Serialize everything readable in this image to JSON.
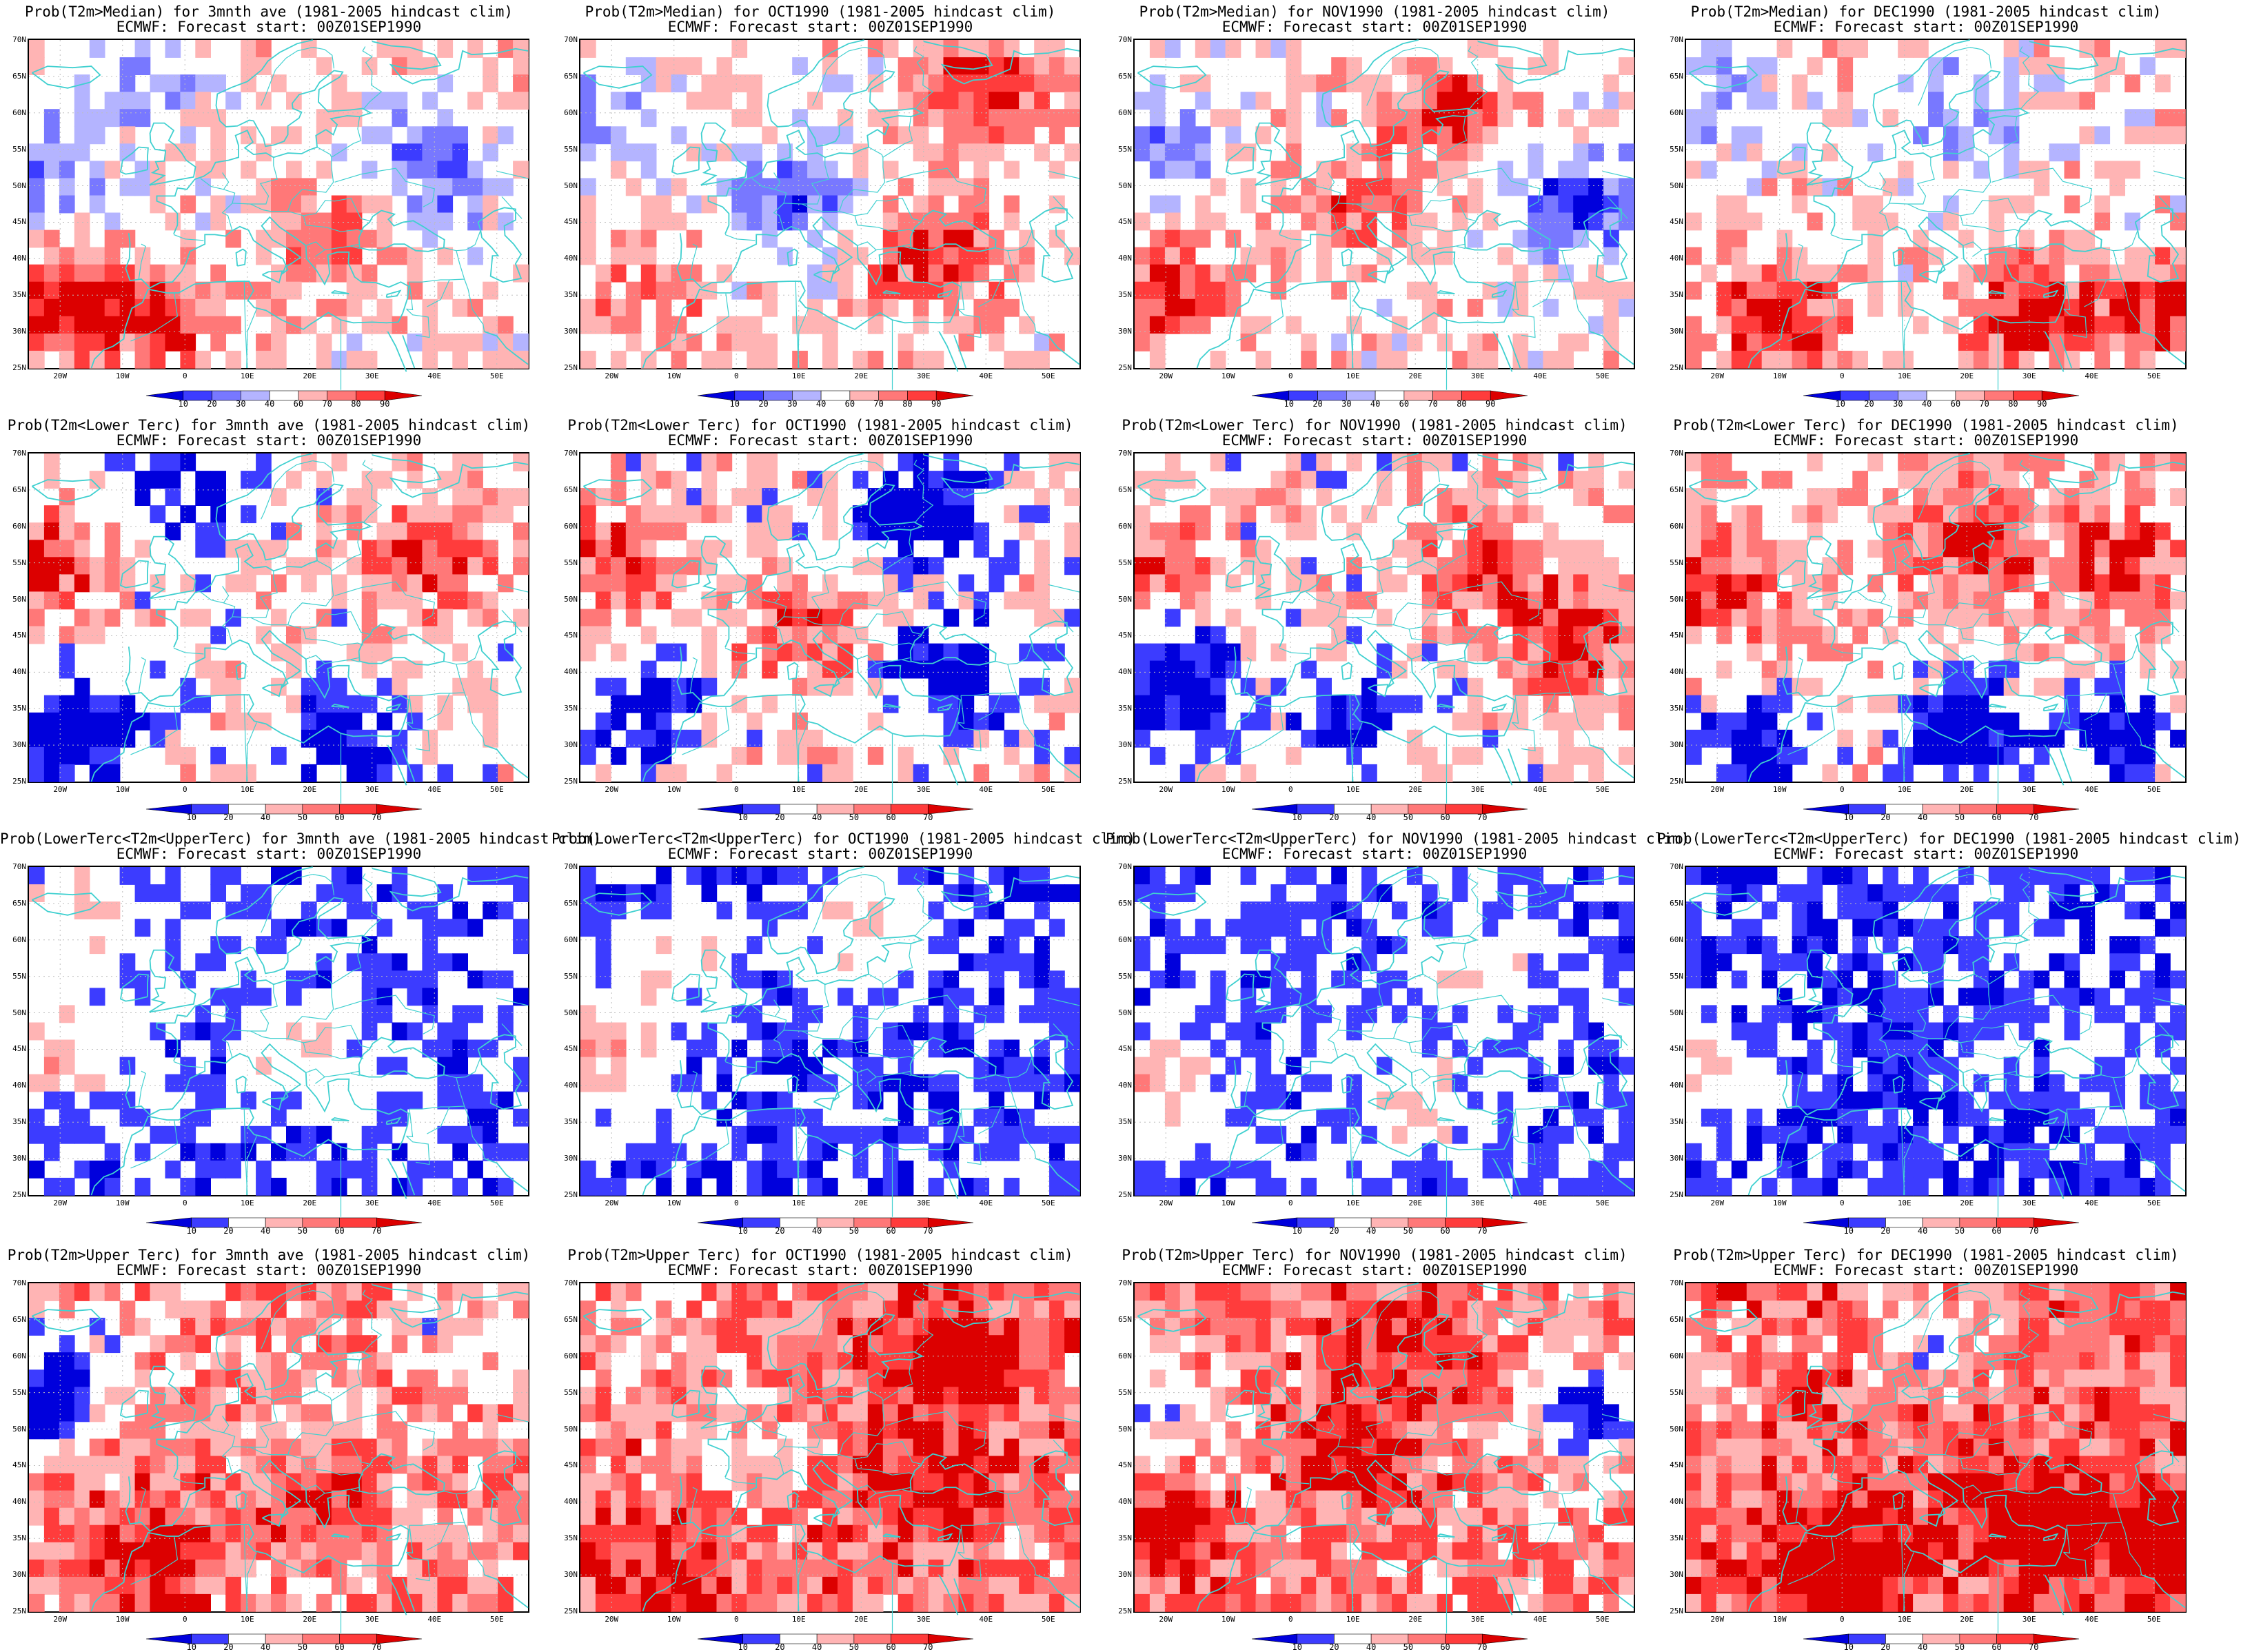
{
  "panels": [
    {
      "title1": "Prob(T2m>Median) for 3mnth ave (1981-2005 hindcast clim)",
      "title2": "ECMWF: Forecast start: 00Z01SEP1990",
      "scheme": "median",
      "pattern": "median_3m"
    },
    {
      "title1": "Prob(T2m>Median) for OCT1990 (1981-2005 hindcast clim)",
      "title2": "ECMWF: Forecast start: 00Z01SEP1990",
      "scheme": "median",
      "pattern": "median_oct"
    },
    {
      "title1": "Prob(T2m>Median) for NOV1990 (1981-2005 hindcast clim)",
      "title2": "ECMWF: Forecast start: 00Z01SEP1990",
      "scheme": "median",
      "pattern": "median_nov"
    },
    {
      "title1": "Prob(T2m>Median) for DEC1990 (1981-2005 hindcast clim)",
      "title2": "ECMWF: Forecast start: 00Z01SEP1990",
      "scheme": "median",
      "pattern": "median_dec"
    },
    {
      "title1": "Prob(T2m<Lower Terc) for 3mnth ave (1981-2005 hindcast clim)",
      "title2": "ECMWF: Forecast start: 00Z01SEP1990",
      "scheme": "tercile",
      "pattern": "lower_3m"
    },
    {
      "title1": "Prob(T2m<Lower Terc) for OCT1990 (1981-2005 hindcast clim)",
      "title2": "ECMWF: Forecast start: 00Z01SEP1990",
      "scheme": "tercile",
      "pattern": "lower_oct"
    },
    {
      "title1": "Prob(T2m<Lower Terc) for NOV1990 (1981-2005 hindcast clim)",
      "title2": "ECMWF: Forecast start: 00Z01SEP1990",
      "scheme": "tercile",
      "pattern": "lower_nov"
    },
    {
      "title1": "Prob(T2m<Lower Terc) for DEC1990 (1981-2005 hindcast clim)",
      "title2": "ECMWF: Forecast start: 00Z01SEP1990",
      "scheme": "tercile",
      "pattern": "lower_dec"
    },
    {
      "title1": "Prob(LowerTerc<T2m<UpperTerc) for 3mnth ave (1981-2005 hindcast clim)",
      "title2": "ECMWF: Forecast start: 00Z01SEP1990",
      "scheme": "tercile",
      "pattern": "middle_3m"
    },
    {
      "title1": "Prob(LowerTerc<T2m<UpperTerc) for OCT1990 (1981-2005 hindcast clim)",
      "title2": "ECMWF: Forecast start: 00Z01SEP1990",
      "scheme": "tercile",
      "pattern": "middle_oct"
    },
    {
      "title1": "Prob(LowerTerc<T2m<UpperTerc) for NOV1990 (1981-2005 hindcast clim)",
      "title2": "ECMWF: Forecast start: 00Z01SEP1990",
      "scheme": "tercile",
      "pattern": "middle_nov"
    },
    {
      "title1": "Prob(LowerTerc<T2m<UpperTerc) for DEC1990 (1981-2005 hindcast clim)",
      "title2": "ECMWF: Forecast start: 00Z01SEP1990",
      "scheme": "tercile",
      "pattern": "middle_dec"
    },
    {
      "title1": "Prob(T2m>Upper Terc) for 3mnth ave (1981-2005 hindcast clim)",
      "title2": "ECMWF: Forecast start: 00Z01SEP1990",
      "scheme": "tercile",
      "pattern": "upper_3m"
    },
    {
      "title1": "Prob(T2m>Upper Terc) for OCT1990 (1981-2005 hindcast clim)",
      "title2": "ECMWF: Forecast start: 00Z01SEP1990",
      "scheme": "tercile",
      "pattern": "upper_oct"
    },
    {
      "title1": "Prob(T2m>Upper Terc) for NOV1990 (1981-2005 hindcast clim)",
      "title2": "ECMWF: Forecast start: 00Z01SEP1990",
      "scheme": "tercile",
      "pattern": "upper_nov"
    },
    {
      "title1": "Prob(T2m>Upper Terc) for DEC1990 (1981-2005 hindcast clim)",
      "title2": "ECMWF: Forecast start: 00Z01SEP1990",
      "scheme": "tercile",
      "pattern": "upper_dec"
    }
  ],
  "lat_labels": [
    "70N",
    "65N",
    "60N",
    "55N",
    "50N",
    "45N",
    "40N",
    "35N",
    "30N",
    "25N"
  ],
  "lon_labels": [
    "20W",
    "10W",
    "0",
    "10E",
    "20E",
    "30E",
    "40E",
    "50E"
  ],
  "colorbars": {
    "median": {
      "labels": [
        "10",
        "20",
        "30",
        "40",
        "60",
        "70",
        "80",
        "90"
      ],
      "colors": [
        "#0000dc",
        "#3c3cff",
        "#7878ff",
        "#b4b4ff",
        "#ffffff",
        "#ffb4b4",
        "#ff7878",
        "#ff3c3c",
        "#dc0000"
      ]
    },
    "tercile": {
      "labels": [
        "10",
        "20",
        "40",
        "50",
        "60",
        "70"
      ],
      "colors": [
        "#0000dc",
        "#3c3cff",
        "#ffffff",
        "#ffb4b4",
        "#ff7878",
        "#ff3c3c",
        "#dc0000"
      ]
    }
  },
  "coastline_color": "#40d0d0",
  "gridline_color": "#bdbdbd"
}
